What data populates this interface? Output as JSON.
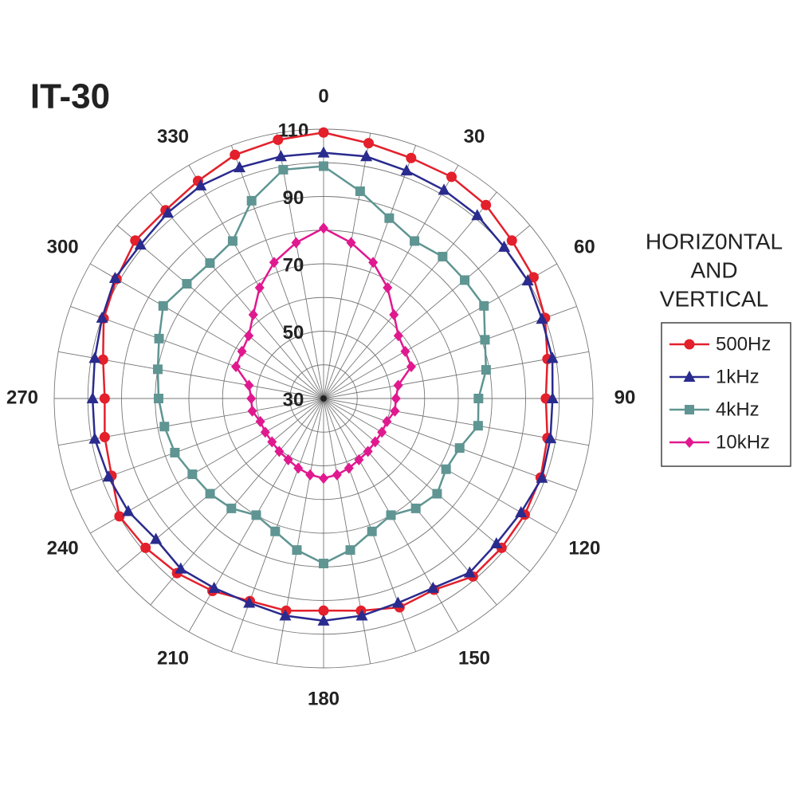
{
  "chart_data": {
    "type": "polar",
    "title": "IT-30",
    "legend_title": [
      "HORIZ0NTAL",
      "AND",
      "VERTICAL"
    ],
    "theta": [
      0,
      10,
      20,
      30,
      40,
      50,
      60,
      70,
      80,
      90,
      100,
      110,
      120,
      130,
      140,
      150,
      160,
      170,
      180,
      190,
      200,
      210,
      220,
      230,
      240,
      250,
      260,
      270,
      280,
      290,
      300,
      310,
      320,
      330,
      340,
      350
    ],
    "thetaticks": [
      0,
      30,
      60,
      90,
      120,
      150,
      180,
      210,
      240,
      270,
      300,
      330
    ],
    "theta_grid_step": 10,
    "rlim": [
      30,
      110
    ],
    "rticks": [
      30,
      50,
      70,
      90,
      110
    ],
    "rminor": [
      40,
      60,
      80,
      100
    ],
    "series": [
      {
        "name": "500Hz",
        "color": "#e3202b",
        "marker": "circle",
        "values": [
          109,
          107,
          106,
          106,
          105,
          103,
          102,
          100,
          97.5,
          96,
          97.5,
          98.6,
          99,
          99,
          99,
          95.6,
          96,
          94,
          93,
          94,
          94,
          96,
          97.7,
          99,
          100,
          97,
          96,
          95,
          96.5,
          99.5,
          101,
          103,
          103,
          104.6,
          107,
          108
        ]
      },
      {
        "name": "1kHz",
        "color": "#2a2b8e",
        "marker": "triangle",
        "values": [
          103,
          103,
          102,
          101.5,
          101,
          100,
          100,
          99,
          99,
          98,
          98.4,
          99,
          97.7,
          97,
          97.5,
          95,
          94.6,
          95.5,
          96,
          95.5,
          94.6,
          95,
          96,
          95,
          97,
          98,
          99,
          98.6,
          99,
          100,
          101.5,
          101,
          102,
          103,
          103,
          103
        ]
      },
      {
        "name": "4kHz",
        "color": "#5f9592",
        "marker": "square",
        "values": [
          99,
          92.5,
          87,
          84,
          85,
          84.7,
          85,
          81,
          79,
          76,
          76.6,
          73,
          72,
          74,
          72.6,
          70,
          72,
          75.7,
          79,
          75.7,
          72,
          70,
          72.6,
          74,
          75,
          77,
          78,
          79,
          80,
          82,
          85,
          83,
          82.5,
          84,
          92.5,
          99
        ]
      },
      {
        "name": "10kHz",
        "color": "#e0198f",
        "marker": "diamond",
        "values": [
          80.6,
          77,
          73,
          68,
          62.5,
          59,
          58,
          57.7,
          52.5,
          51.5,
          51.5,
          50,
          50,
          50,
          50.5,
          51,
          52,
          53,
          53.7,
          53,
          52,
          51,
          50.5,
          50,
          50,
          50,
          51.5,
          51.5,
          52.5,
          57.7,
          58,
          59,
          62.5,
          68,
          73,
          77
        ]
      }
    ]
  }
}
